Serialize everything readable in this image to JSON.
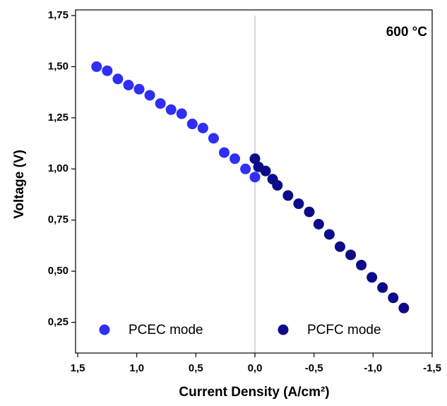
{
  "chart_data": {
    "type": "scatter",
    "x_label": "Current Density (A/cm²)",
    "y_label": "Voltage (V)",
    "annotation": "600 °C",
    "xlim": [
      1.5,
      -1.5
    ],
    "xticks": [
      {
        "value": 1.5,
        "label": "1,5"
      },
      {
        "value": 1.0,
        "label": "1,0"
      },
      {
        "value": 0.5,
        "label": "0,5"
      },
      {
        "value": 0,
        "label": "0,0"
      },
      {
        "value": -0.5,
        "label": "-0,5"
      },
      {
        "value": -1.0,
        "label": "-1,0"
      },
      {
        "value": -1.5,
        "label": "-1,5"
      }
    ],
    "ylim": [
      0.1,
      1.75
    ],
    "yticks": [
      {
        "value": 0.25,
        "label": "0,25"
      },
      {
        "value": 0.5,
        "label": "0,50"
      },
      {
        "value": 0.75,
        "label": "0,75"
      },
      {
        "value": 1.0,
        "label": "1,00"
      },
      {
        "value": 1.25,
        "label": "1,25"
      },
      {
        "value": 1.5,
        "label": "1,50"
      },
      {
        "value": 1.75,
        "label": "1,75"
      }
    ],
    "reference_line_x": 0,
    "legend": "bottom",
    "series": [
      {
        "name": "PCEC mode",
        "color": "#2f2ff5",
        "x": [
          1.34,
          1.25,
          1.16,
          1.07,
          0.98,
          0.89,
          0.8,
          0.71,
          0.62,
          0.53,
          0.44,
          0.35,
          0.26,
          0.17,
          0.08,
          0.0
        ],
        "values": [
          1.5,
          1.48,
          1.44,
          1.41,
          1.39,
          1.36,
          1.32,
          1.29,
          1.27,
          1.22,
          1.2,
          1.15,
          1.08,
          1.05,
          1.0,
          0.96
        ]
      },
      {
        "name": "PCFC mode",
        "color": "#0c0c8a",
        "x": [
          0.0,
          -0.03,
          -0.09,
          -0.15,
          -0.19,
          -0.28,
          -0.37,
          -0.46,
          -0.54,
          -0.63,
          -0.72,
          -0.81,
          -0.9,
          -0.99,
          -1.08,
          -1.17,
          -1.26
        ],
        "values": [
          1.05,
          1.01,
          0.99,
          0.95,
          0.92,
          0.87,
          0.83,
          0.79,
          0.73,
          0.68,
          0.62,
          0.58,
          0.53,
          0.47,
          0.42,
          0.37,
          0.32
        ]
      }
    ]
  }
}
